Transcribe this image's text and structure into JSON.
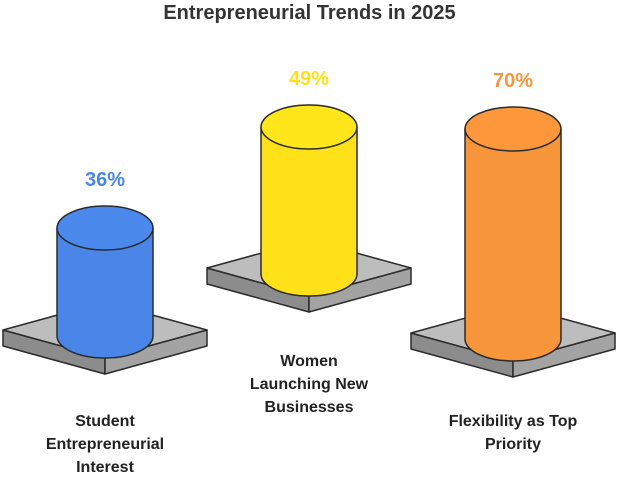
{
  "chart_data": {
    "type": "bar",
    "title": "Entrepreneurial Trends in 2025",
    "categories": [
      [
        "Student",
        "Entrepreneurial",
        "Interest"
      ],
      [
        "Women",
        "Launching New",
        "Businesses"
      ],
      [
        "Flexibility as Top",
        "Priority"
      ]
    ],
    "values": [
      36,
      49,
      70
    ],
    "value_labels": [
      "36%",
      "49%",
      "70%"
    ],
    "colors": [
      "#4a86e8",
      "#ffe119",
      "#f7953a"
    ],
    "label_colors": [
      "#4a86e8",
      "#ffe119",
      "#f7953a"
    ],
    "xlabel": "",
    "ylabel": "",
    "grid": false,
    "legend": "none"
  }
}
